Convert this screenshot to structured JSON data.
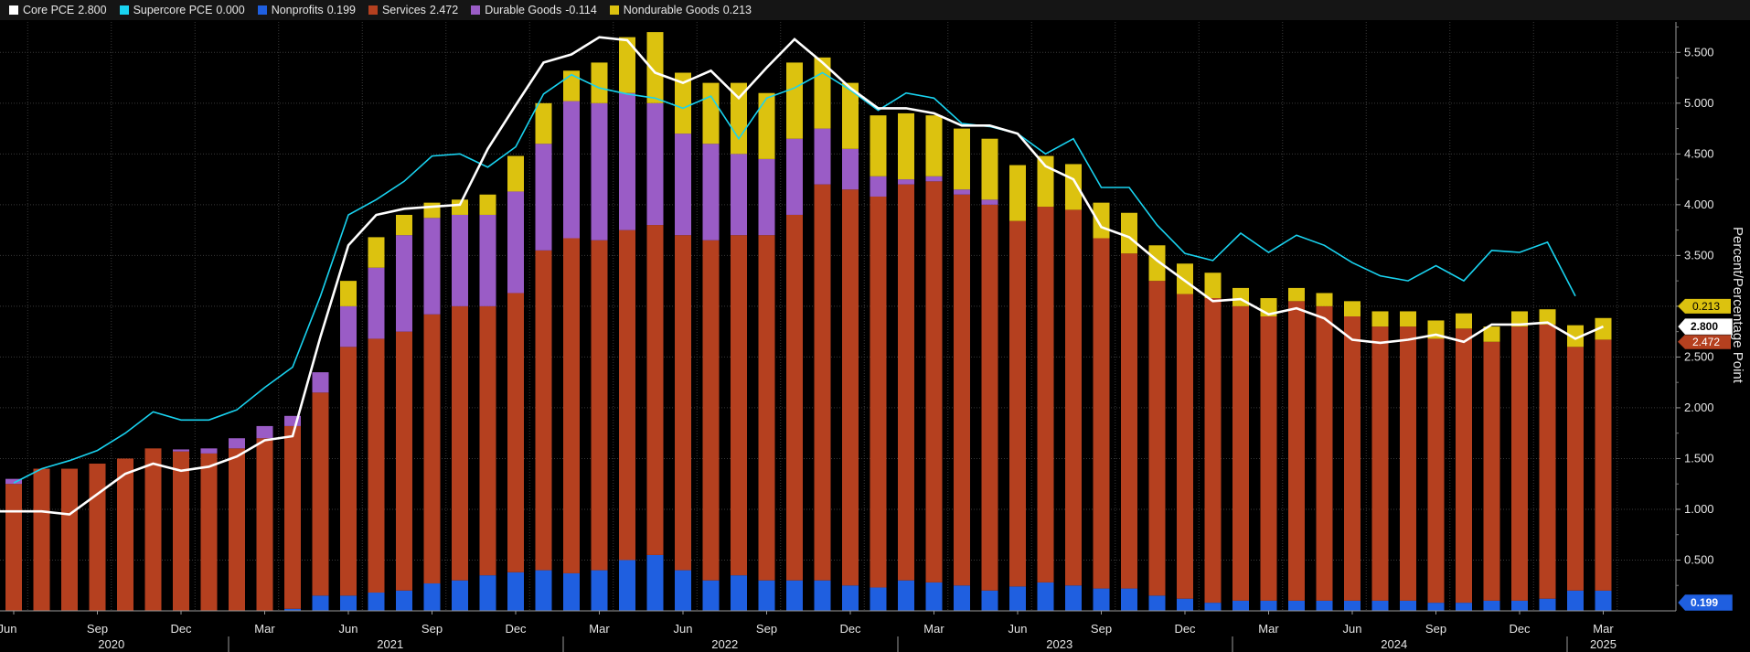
{
  "chart_data": {
    "type": "stacked-bar-line",
    "ylabel": "Percent/Percentage Point",
    "ylim": [
      0,
      5.8
    ],
    "yticks": [
      "0.500",
      "1.000",
      "1.500",
      "2.000",
      "2.500",
      "3.000",
      "3.500",
      "4.000",
      "4.500",
      "5.000",
      "5.500"
    ],
    "ytick_values": [
      0.5,
      1,
      1.5,
      2,
      2.5,
      3,
      3.5,
      4,
      4.5,
      5,
      5.5
    ],
    "month_labels": [
      {
        "i": 0,
        "label": "Jun"
      },
      {
        "i": 3,
        "label": "Sep"
      },
      {
        "i": 6,
        "label": "Dec"
      },
      {
        "i": 9,
        "label": "Mar"
      },
      {
        "i": 12,
        "label": "Jun"
      },
      {
        "i": 15,
        "label": "Sep"
      },
      {
        "i": 18,
        "label": "Dec"
      },
      {
        "i": 21,
        "label": "Mar"
      },
      {
        "i": 24,
        "label": "Jun"
      },
      {
        "i": 27,
        "label": "Sep"
      },
      {
        "i": 30,
        "label": "Dec"
      },
      {
        "i": 33,
        "label": "Mar"
      },
      {
        "i": 36,
        "label": "Jun"
      },
      {
        "i": 39,
        "label": "Sep"
      },
      {
        "i": 42,
        "label": "Dec"
      },
      {
        "i": 45,
        "label": "Mar"
      },
      {
        "i": 48,
        "label": "Jun"
      },
      {
        "i": 51,
        "label": "Sep"
      },
      {
        "i": 54,
        "label": "Dec"
      },
      {
        "i": 57,
        "label": "Mar"
      }
    ],
    "year_labels": [
      {
        "center": 3.5,
        "label": "2020"
      },
      {
        "center": 13.5,
        "label": "2021"
      },
      {
        "center": 25.5,
        "label": "2022"
      },
      {
        "center": 37.5,
        "label": "2023"
      },
      {
        "center": 49.5,
        "label": "2024"
      },
      {
        "center": 57,
        "label": "2025"
      }
    ],
    "year_dividers": [
      7.5,
      19.5,
      31.5,
      43.5,
      55.5
    ],
    "legend": [
      {
        "name": "Core PCE",
        "value": "2.800",
        "color": "#ffffff"
      },
      {
        "name": "Supercore PCE",
        "value": "0.000",
        "color": "#19d3f0"
      },
      {
        "name": "Nonprofits",
        "value": "0.199",
        "color": "#1f5fe0"
      },
      {
        "name": "Services",
        "value": "2.472",
        "color": "#b5401f"
      },
      {
        "name": "Durable Goods",
        "value": "-0.114",
        "color": "#9a5cc6"
      },
      {
        "name": "Nondurable Goods",
        "value": "0.213",
        "color": "#dcc20f"
      }
    ],
    "series": {
      "nonprofits": [
        0,
        0,
        0,
        0,
        0,
        0,
        0,
        0,
        0,
        0,
        0.02,
        0.15,
        0.15,
        0.18,
        0.2,
        0.27,
        0.3,
        0.35,
        0.38,
        0.4,
        0.37,
        0.4,
        0.5,
        0.55,
        0.4,
        0.3,
        0.35,
        0.3,
        0.3,
        0.3,
        0.25,
        0.23,
        0.3,
        0.28,
        0.25,
        0.2,
        0.24,
        0.28,
        0.25,
        0.22,
        0.22,
        0.15,
        0.12,
        0.08,
        0.1,
        0.1,
        0.1,
        0.1,
        0.1,
        0.1,
        0.1,
        0.08,
        0.08,
        0.1,
        0.1,
        0.12,
        0.2,
        0.199
      ],
      "services": [
        1.25,
        1.4,
        1.4,
        1.45,
        1.5,
        1.6,
        1.57,
        1.55,
        1.6,
        1.7,
        1.8,
        2.0,
        2.45,
        2.5,
        2.55,
        2.65,
        2.7,
        2.65,
        2.75,
        3.15,
        3.3,
        3.25,
        3.25,
        3.25,
        3.3,
        3.35,
        3.35,
        3.4,
        3.6,
        3.9,
        3.9,
        3.85,
        3.9,
        3.95,
        3.85,
        3.8,
        3.6,
        3.7,
        3.7,
        3.45,
        3.3,
        3.1,
        3.0,
        3.0,
        2.9,
        2.8,
        2.95,
        2.9,
        2.8,
        2.7,
        2.7,
        2.6,
        2.7,
        2.55,
        2.7,
        2.7,
        2.4,
        2.472
      ],
      "durable": [
        0.05,
        0,
        0,
        0,
        0,
        0,
        0.02,
        0.05,
        0.1,
        0.12,
        0.1,
        0.2,
        0.4,
        0.7,
        0.95,
        0.95,
        0.9,
        0.9,
        1.0,
        1.05,
        1.35,
        1.35,
        1.35,
        1.2,
        1.0,
        0.95,
        0.8,
        0.75,
        0.75,
        0.55,
        0.4,
        0.2,
        0.05,
        0.05,
        0.05,
        0.05,
        0,
        0,
        0,
        0,
        0,
        0,
        0,
        0,
        0,
        0,
        0,
        0,
        0,
        0,
        0,
        0,
        0,
        0,
        0,
        0,
        -0.114,
        -0.114
      ],
      "nondurable": [
        0,
        0,
        0,
        0,
        0,
        0,
        0,
        0,
        0,
        0,
        0,
        0,
        0.25,
        0.3,
        0.2,
        0.15,
        0.15,
        0.2,
        0.35,
        0.4,
        0.3,
        0.4,
        0.55,
        0.7,
        0.6,
        0.6,
        0.7,
        0.65,
        0.75,
        0.7,
        0.65,
        0.6,
        0.65,
        0.6,
        0.6,
        0.6,
        0.55,
        0.5,
        0.45,
        0.35,
        0.4,
        0.35,
        0.3,
        0.25,
        0.18,
        0.18,
        0.13,
        0.13,
        0.15,
        0.15,
        0.15,
        0.18,
        0.15,
        0.15,
        0.15,
        0.15,
        0.213,
        0.213
      ],
      "core_pce": [
        0.98,
        0.98,
        0.95,
        1.15,
        1.35,
        1.45,
        1.38,
        1.42,
        1.52,
        1.68,
        1.72,
        2.7,
        3.6,
        3.9,
        3.96,
        3.98,
        4.0,
        4.55,
        4.98,
        5.4,
        5.48,
        5.65,
        5.62,
        5.3,
        5.2,
        5.32,
        5.05,
        5.35,
        5.63,
        5.4,
        5.15,
        4.95,
        4.95,
        4.9,
        4.78,
        4.78,
        4.7,
        4.38,
        4.25,
        3.78,
        3.68,
        3.45,
        3.25,
        3.05,
        3.07,
        2.92,
        2.98,
        2.88,
        2.67,
        2.64,
        2.67,
        2.72,
        2.65,
        2.82,
        2.82,
        2.84,
        2.68,
        2.8
      ],
      "supercore_pce": [
        1.26,
        1.4,
        1.48,
        1.58,
        1.75,
        1.96,
        1.88,
        1.88,
        1.98,
        2.2,
        2.4,
        3.1,
        3.9,
        4.05,
        4.23,
        4.48,
        4.5,
        4.37,
        4.57,
        5.09,
        5.28,
        5.15,
        5.09,
        5.05,
        4.95,
        5.07,
        4.65,
        5.05,
        5.15,
        5.3,
        5.13,
        4.93,
        5.1,
        5.05,
        4.8,
        4.77,
        4.7,
        4.5,
        4.65,
        4.17,
        4.17,
        3.8,
        3.52,
        3.45,
        3.72,
        3.53,
        3.7,
        3.6,
        3.43,
        3.3,
        3.25,
        3.4,
        3.25,
        3.55,
        3.53,
        3.63,
        3.1,
        null
      ]
    },
    "end_tags": [
      {
        "label": "2.800",
        "series": "core_pce",
        "color": "#ffffff",
        "text_color": "#000000"
      },
      {
        "label": "0.199",
        "series": "nonprofits",
        "color": "#1f5fe0",
        "text_color": "#ffffff"
      }
    ]
  }
}
